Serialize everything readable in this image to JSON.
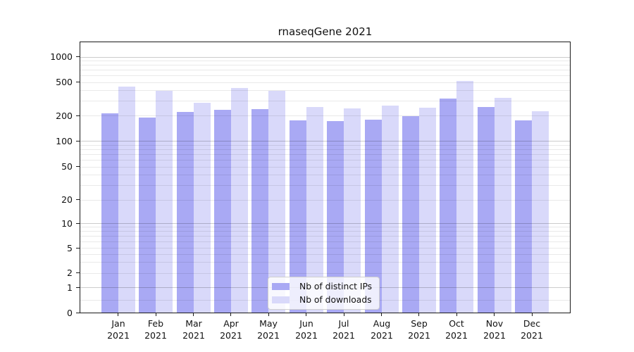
{
  "chart_data": {
    "type": "bar",
    "title": "rnaseqGene 2021",
    "scale": "symlog",
    "grid": true,
    "x_sublabel": "2021",
    "categories": [
      "Jan",
      "Feb",
      "Mar",
      "Apr",
      "May",
      "Jun",
      "Jul",
      "Aug",
      "Sep",
      "Oct",
      "Nov",
      "Dec"
    ],
    "series": [
      {
        "name": "Nb of distinct IPs",
        "color": "#a9a9f4",
        "values": [
          212,
          188,
          220,
          233,
          238,
          176,
          171,
          178,
          196,
          316,
          254,
          175
        ]
      },
      {
        "name": "Nb of downloads",
        "color": "#d9d9fa",
        "values": [
          437,
          392,
          281,
          427,
          391,
          251,
          243,
          262,
          247,
          514,
          326,
          226
        ]
      }
    ],
    "y_ticks": [
      0,
      1,
      2,
      5,
      10,
      20,
      50,
      100,
      200,
      500,
      1000
    ],
    "ylim": [
      0,
      1400
    ],
    "legend": {
      "items": [
        "Nb of distinct IPs",
        "Nb of downloads"
      ],
      "position": "bottom-center"
    }
  }
}
